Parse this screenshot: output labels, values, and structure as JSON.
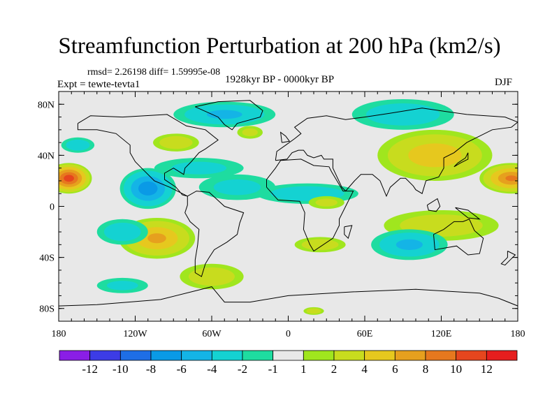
{
  "header": {
    "title": "Streamfunction Perturbation at 200 hPa (km2/s)",
    "stats": "rmsd= 2.26198 diff= 1.59995e-08",
    "experiment": "Expt = tewte-tevta1",
    "period": "1928kyr BP - 0000kyr BP",
    "season": "DJF"
  },
  "chart_data": {
    "type": "heatmap",
    "title": "Streamfunction Perturbation at 200 hPa (km2/s)",
    "subtitle": "1928kyr BP - 0000kyr BP",
    "xlabel": "",
    "ylabel": "",
    "xlim": [
      -180,
      180
    ],
    "ylim": [
      -90,
      90
    ],
    "x_ticks": [
      {
        "value": -180,
        "label": "180"
      },
      {
        "value": -120,
        "label": "120W"
      },
      {
        "value": -60,
        "label": "60W"
      },
      {
        "value": 0,
        "label": "0"
      },
      {
        "value": 60,
        "label": "60E"
      },
      {
        "value": 120,
        "label": "120E"
      },
      {
        "value": 180,
        "label": "180"
      }
    ],
    "y_ticks": [
      {
        "value": 80,
        "label": "80N"
      },
      {
        "value": 40,
        "label": "40N"
      },
      {
        "value": 0,
        "label": "0"
      },
      {
        "value": -40,
        "label": "40S"
      },
      {
        "value": -80,
        "label": "80S"
      }
    ],
    "levels": [
      -12,
      -10,
      -8,
      -6,
      -4,
      -2,
      -1,
      1,
      2,
      4,
      6,
      8,
      10,
      12
    ],
    "level_labels": [
      "-12",
      "-10",
      "-8",
      "-6",
      "-4",
      "-2",
      "-1",
      "1",
      "2",
      "4",
      "6",
      "8",
      "10",
      "12"
    ],
    "colors": [
      "#8a1ee6",
      "#3c3ce6",
      "#1e6ee6",
      "#0a9ae6",
      "#14b4e6",
      "#14d2d2",
      "#1edca0",
      "#e8e8e8",
      "#a0e61e",
      "#c8dc1e",
      "#e6c81e",
      "#e6a01e",
      "#e6781e",
      "#e6461e",
      "#e61e1e"
    ],
    "features": [
      {
        "lon": -172,
        "lat": 22,
        "rlon": 18,
        "rlat": 12,
        "value": 11
      },
      {
        "lon": -165,
        "lat": 48,
        "rlon": 13,
        "rlat": 6,
        "value": -3
      },
      {
        "lon": -110,
        "lat": 14,
        "rlon": 22,
        "rlat": 16,
        "value": -7
      },
      {
        "lon": -88,
        "lat": 50,
        "rlon": 18,
        "rlat": 7,
        "value": 3
      },
      {
        "lon": -70,
        "lat": 30,
        "rlon": 35,
        "rlat": 8,
        "value": -2
      },
      {
        "lon": -50,
        "lat": 72,
        "rlon": 40,
        "rlat": 10,
        "value": -4
      },
      {
        "lon": -30,
        "lat": 58,
        "rlon": 10,
        "rlat": 5,
        "value": 2
      },
      {
        "lon": -103,
        "lat": -25,
        "rlon": 30,
        "rlat": 16,
        "value": 6
      },
      {
        "lon": -130,
        "lat": -20,
        "rlon": 20,
        "rlat": 10,
        "value": -3
      },
      {
        "lon": -60,
        "lat": -55,
        "rlon": 25,
        "rlat": 10,
        "value": 3
      },
      {
        "lon": -130,
        "lat": -62,
        "rlon": 20,
        "rlat": 6,
        "value": -2
      },
      {
        "lon": -40,
        "lat": 15,
        "rlon": 30,
        "rlat": 10,
        "value": -2
      },
      {
        "lon": 15,
        "lat": 10,
        "rlon": 40,
        "rlat": 8,
        "value": -3
      },
      {
        "lon": 30,
        "lat": 3,
        "rlon": 14,
        "rlat": 5,
        "value": 2
      },
      {
        "lon": 25,
        "lat": -30,
        "rlon": 20,
        "rlat": 6,
        "value": 3
      },
      {
        "lon": 90,
        "lat": 72,
        "rlon": 40,
        "rlat": 12,
        "value": -3
      },
      {
        "lon": 115,
        "lat": 40,
        "rlon": 45,
        "rlat": 20,
        "value": 5
      },
      {
        "lon": 175,
        "lat": 22,
        "rlon": 25,
        "rlat": 12,
        "value": 8
      },
      {
        "lon": 120,
        "lat": -15,
        "rlon": 45,
        "rlat": 12,
        "value": 3
      },
      {
        "lon": 95,
        "lat": -30,
        "rlon": 30,
        "rlat": 12,
        "value": -4
      },
      {
        "lon": 20,
        "lat": -82,
        "rlon": 8,
        "rlat": 3,
        "value": 3
      }
    ],
    "legend_position": "bottom",
    "colorbar": true
  },
  "coastlines": [
    {
      "name": "north-america",
      "points": [
        [
          -165,
          65
        ],
        [
          -155,
          71
        ],
        [
          -130,
          70
        ],
        [
          -95,
          72
        ],
        [
          -80,
          63
        ],
        [
          -65,
          60
        ],
        [
          -55,
          52
        ],
        [
          -65,
          45
        ],
        [
          -70,
          42
        ],
        [
          -76,
          35
        ],
        [
          -81,
          30
        ],
        [
          -82,
          25
        ],
        [
          -90,
          30
        ],
        [
          -97,
          26
        ],
        [
          -97,
          21
        ],
        [
          -88,
          15
        ],
        [
          -83,
          9
        ],
        [
          -79,
          8
        ],
        [
          -85,
          11
        ],
        [
          -93,
          15
        ],
        [
          -105,
          20
        ],
        [
          -115,
          30
        ],
        [
          -120,
          35
        ],
        [
          -124,
          42
        ],
        [
          -124,
          48
        ],
        [
          -135,
          57
        ],
        [
          -150,
          60
        ],
        [
          -165,
          60
        ],
        [
          -165,
          65
        ]
      ]
    },
    {
      "name": "south-america",
      "points": [
        [
          -79,
          8
        ],
        [
          -72,
          12
        ],
        [
          -62,
          11
        ],
        [
          -50,
          0
        ],
        [
          -35,
          -5
        ],
        [
          -38,
          -13
        ],
        [
          -40,
          -22
        ],
        [
          -48,
          -28
        ],
        [
          -58,
          -34
        ],
        [
          -62,
          -40
        ],
        [
          -65,
          -45
        ],
        [
          -68,
          -55
        ],
        [
          -73,
          -52
        ],
        [
          -73,
          -42
        ],
        [
          -71,
          -30
        ],
        [
          -70,
          -18
        ],
        [
          -77,
          -12
        ],
        [
          -81,
          -5
        ],
        [
          -79,
          1
        ],
        [
          -79,
          8
        ]
      ]
    },
    {
      "name": "greenland",
      "points": [
        [
          -73,
          78
        ],
        [
          -55,
          82
        ],
        [
          -30,
          83
        ],
        [
          -20,
          75
        ],
        [
          -22,
          70
        ],
        [
          -40,
          65
        ],
        [
          -44,
          60
        ],
        [
          -50,
          64
        ],
        [
          -55,
          70
        ],
        [
          -73,
          78
        ]
      ]
    },
    {
      "name": "africa",
      "points": [
        [
          -17,
          15
        ],
        [
          -17,
          21
        ],
        [
          -10,
          30
        ],
        [
          -6,
          36
        ],
        [
          10,
          37
        ],
        [
          20,
          32
        ],
        [
          32,
          31
        ],
        [
          34,
          27
        ],
        [
          43,
          12
        ],
        [
          51,
          12
        ],
        [
          40,
          -10
        ],
        [
          40,
          -15
        ],
        [
          35,
          -25
        ],
        [
          20,
          -35
        ],
        [
          17,
          -30
        ],
        [
          12,
          -18
        ],
        [
          13,
          -5
        ],
        [
          9,
          4
        ],
        [
          -8,
          5
        ],
        [
          -17,
          15
        ]
      ]
    },
    {
      "name": "eurasia",
      "points": [
        [
          -10,
          36
        ],
        [
          -9,
          43
        ],
        [
          -2,
          48
        ],
        [
          5,
          53
        ],
        [
          10,
          57
        ],
        [
          5,
          62
        ],
        [
          15,
          69
        ],
        [
          30,
          71
        ],
        [
          45,
          68
        ],
        [
          60,
          70
        ],
        [
          80,
          73
        ],
        [
          105,
          77
        ],
        [
          140,
          72
        ],
        [
          170,
          70
        ],
        [
          180,
          66
        ],
        [
          175,
          62
        ],
        [
          160,
          60
        ],
        [
          140,
          50
        ],
        [
          130,
          42
        ],
        [
          122,
          38
        ],
        [
          122,
          30
        ],
        [
          118,
          23
        ],
        [
          108,
          20
        ],
        [
          105,
          10
        ],
        [
          100,
          13
        ],
        [
          98,
          16
        ],
        [
          92,
          22
        ],
        [
          88,
          22
        ],
        [
          80,
          15
        ],
        [
          77,
          8
        ],
        [
          72,
          20
        ],
        [
          66,
          25
        ],
        [
          57,
          25
        ],
        [
          52,
          20
        ],
        [
          45,
          12
        ],
        [
          42,
          15
        ],
        [
          35,
          30
        ],
        [
          35,
          37
        ],
        [
          28,
          37
        ],
        [
          26,
          40
        ],
        [
          20,
          38
        ],
        [
          15,
          40
        ],
        [
          12,
          44
        ],
        [
          8,
          44
        ],
        [
          3,
          42
        ],
        [
          -1,
          37
        ],
        [
          -10,
          36
        ]
      ]
    },
    {
      "name": "australia",
      "points": [
        [
          114,
          -22
        ],
        [
          122,
          -18
        ],
        [
          130,
          -12
        ],
        [
          137,
          -12
        ],
        [
          142,
          -10
        ],
        [
          146,
          -19
        ],
        [
          153,
          -25
        ],
        [
          150,
          -37
        ],
        [
          141,
          -38
        ],
        [
          132,
          -31
        ],
        [
          115,
          -34
        ],
        [
          114,
          -22
        ]
      ]
    },
    {
      "name": "antarctica",
      "points": [
        [
          -180,
          -78
        ],
        [
          -150,
          -77
        ],
        [
          -100,
          -73
        ],
        [
          -60,
          -63
        ],
        [
          -50,
          -75
        ],
        [
          -30,
          -75
        ],
        [
          0,
          -70
        ],
        [
          50,
          -67
        ],
        [
          100,
          -65
        ],
        [
          150,
          -68
        ],
        [
          165,
          -72
        ],
        [
          180,
          -78
        ]
      ]
    },
    {
      "name": "uk",
      "points": [
        [
          -5,
          50
        ],
        [
          1,
          51
        ],
        [
          -2,
          55
        ],
        [
          -6,
          58
        ],
        [
          -5,
          50
        ]
      ]
    },
    {
      "name": "japan",
      "points": [
        [
          130,
          31
        ],
        [
          135,
          34
        ],
        [
          141,
          37
        ],
        [
          141,
          42
        ],
        [
          139,
          38
        ],
        [
          133,
          34
        ],
        [
          130,
          31
        ]
      ]
    },
    {
      "name": "madagascar",
      "points": [
        [
          44,
          -16
        ],
        [
          50,
          -15
        ],
        [
          47,
          -25
        ],
        [
          44,
          -22
        ],
        [
          44,
          -16
        ]
      ]
    },
    {
      "name": "new-zealand",
      "points": [
        [
          172,
          -35
        ],
        [
          178,
          -38
        ],
        [
          174,
          -42
        ],
        [
          170,
          -46
        ],
        [
          167,
          -45
        ],
        [
          172,
          -40
        ],
        [
          172,
          -35
        ]
      ]
    },
    {
      "name": "new-guinea",
      "points": [
        [
          131,
          -1
        ],
        [
          141,
          -3
        ],
        [
          150,
          -10
        ],
        [
          141,
          -9
        ],
        [
          131,
          -1
        ]
      ]
    },
    {
      "name": "borneo",
      "points": [
        [
          109,
          1
        ],
        [
          117,
          6
        ],
        [
          119,
          0
        ],
        [
          116,
          -4
        ],
        [
          110,
          -3
        ],
        [
          109,
          1
        ]
      ]
    }
  ]
}
